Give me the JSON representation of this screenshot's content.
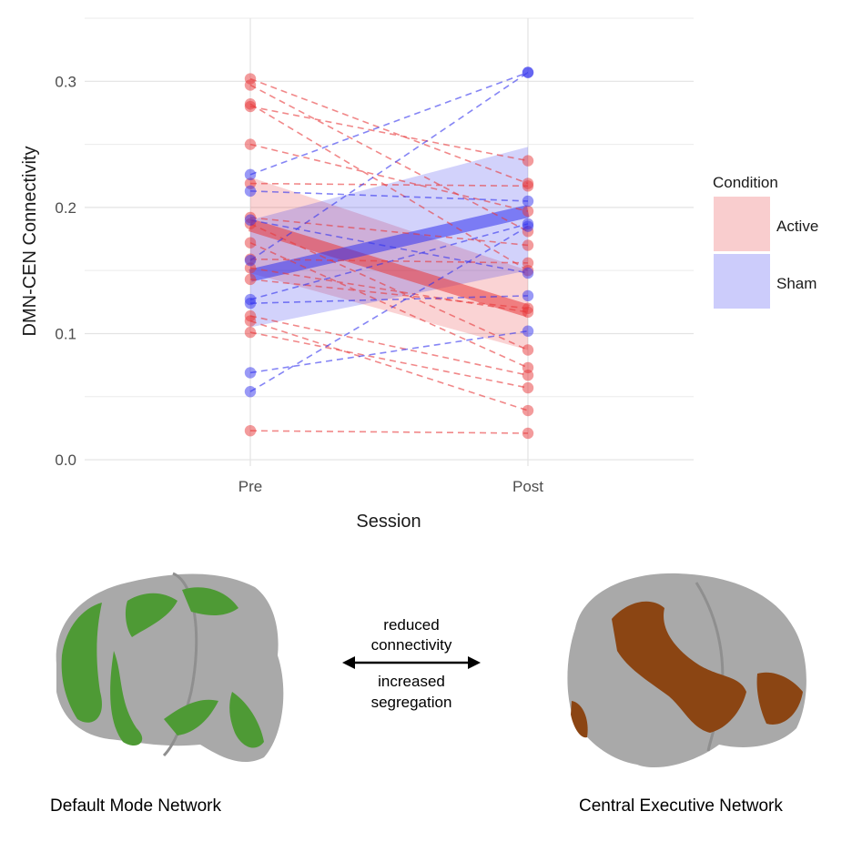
{
  "chart_data": {
    "type": "line",
    "xlabel": "Session",
    "ylabel": "DMN-CEN Connectivity",
    "categories": [
      "Pre",
      "Post"
    ],
    "ylim": [
      -0.005,
      0.35
    ],
    "yticks": [
      0.0,
      0.1,
      0.2,
      0.3
    ],
    "ytick_labels": [
      "0.0",
      "0.1",
      "0.2",
      "0.3"
    ],
    "grid": true,
    "legend": {
      "title": "Condition",
      "placement": "right",
      "entries": [
        "Active",
        "Sham"
      ]
    },
    "series": [
      {
        "name": "Active",
        "color": "#e8383a",
        "fit": [
          0.186,
          0.118
        ],
        "band_pre": [
          0.148,
          0.224
        ],
        "band_post": [
          0.087,
          0.15
        ],
        "pairs": [
          [
            0.302,
            0.219
          ],
          [
            0.297,
            0.181
          ],
          [
            0.282,
            0.15
          ],
          [
            0.28,
            0.237
          ],
          [
            0.25,
            0.197
          ],
          [
            0.219,
            0.217
          ],
          [
            0.192,
            0.17
          ],
          [
            0.187,
            0.087
          ],
          [
            0.172,
            0.073
          ],
          [
            0.159,
            0.156
          ],
          [
            0.152,
            0.117
          ],
          [
            0.143,
            0.12
          ],
          [
            0.114,
            0.067
          ],
          [
            0.11,
            0.039
          ],
          [
            0.101,
            0.057
          ],
          [
            0.023,
            0.021
          ]
        ]
      },
      {
        "name": "Sham",
        "color": "#3333ee",
        "fit": [
          0.146,
          0.197
        ],
        "band_pre": [
          0.105,
          0.19
        ],
        "band_post": [
          0.15,
          0.248
        ],
        "pairs": [
          [
            0.226,
            0.307
          ],
          [
            0.213,
            0.205
          ],
          [
            0.19,
            0.148
          ],
          [
            0.158,
            0.307
          ],
          [
            0.127,
            0.187
          ],
          [
            0.124,
            0.13
          ],
          [
            0.069,
            0.102
          ],
          [
            0.054,
            0.185
          ]
        ]
      }
    ]
  },
  "bottom_panel": {
    "left_caption": "Default Mode Network",
    "right_caption": "Central Executive Network",
    "arrow_top_line1": "reduced",
    "arrow_top_line2": "connectivity",
    "arrow_bottom_line1": "increased",
    "arrow_bottom_line2": "segregation",
    "colors": {
      "brain": "#a9a9a9",
      "dmn": "#4e9a35",
      "cen": "#8b4513"
    }
  }
}
